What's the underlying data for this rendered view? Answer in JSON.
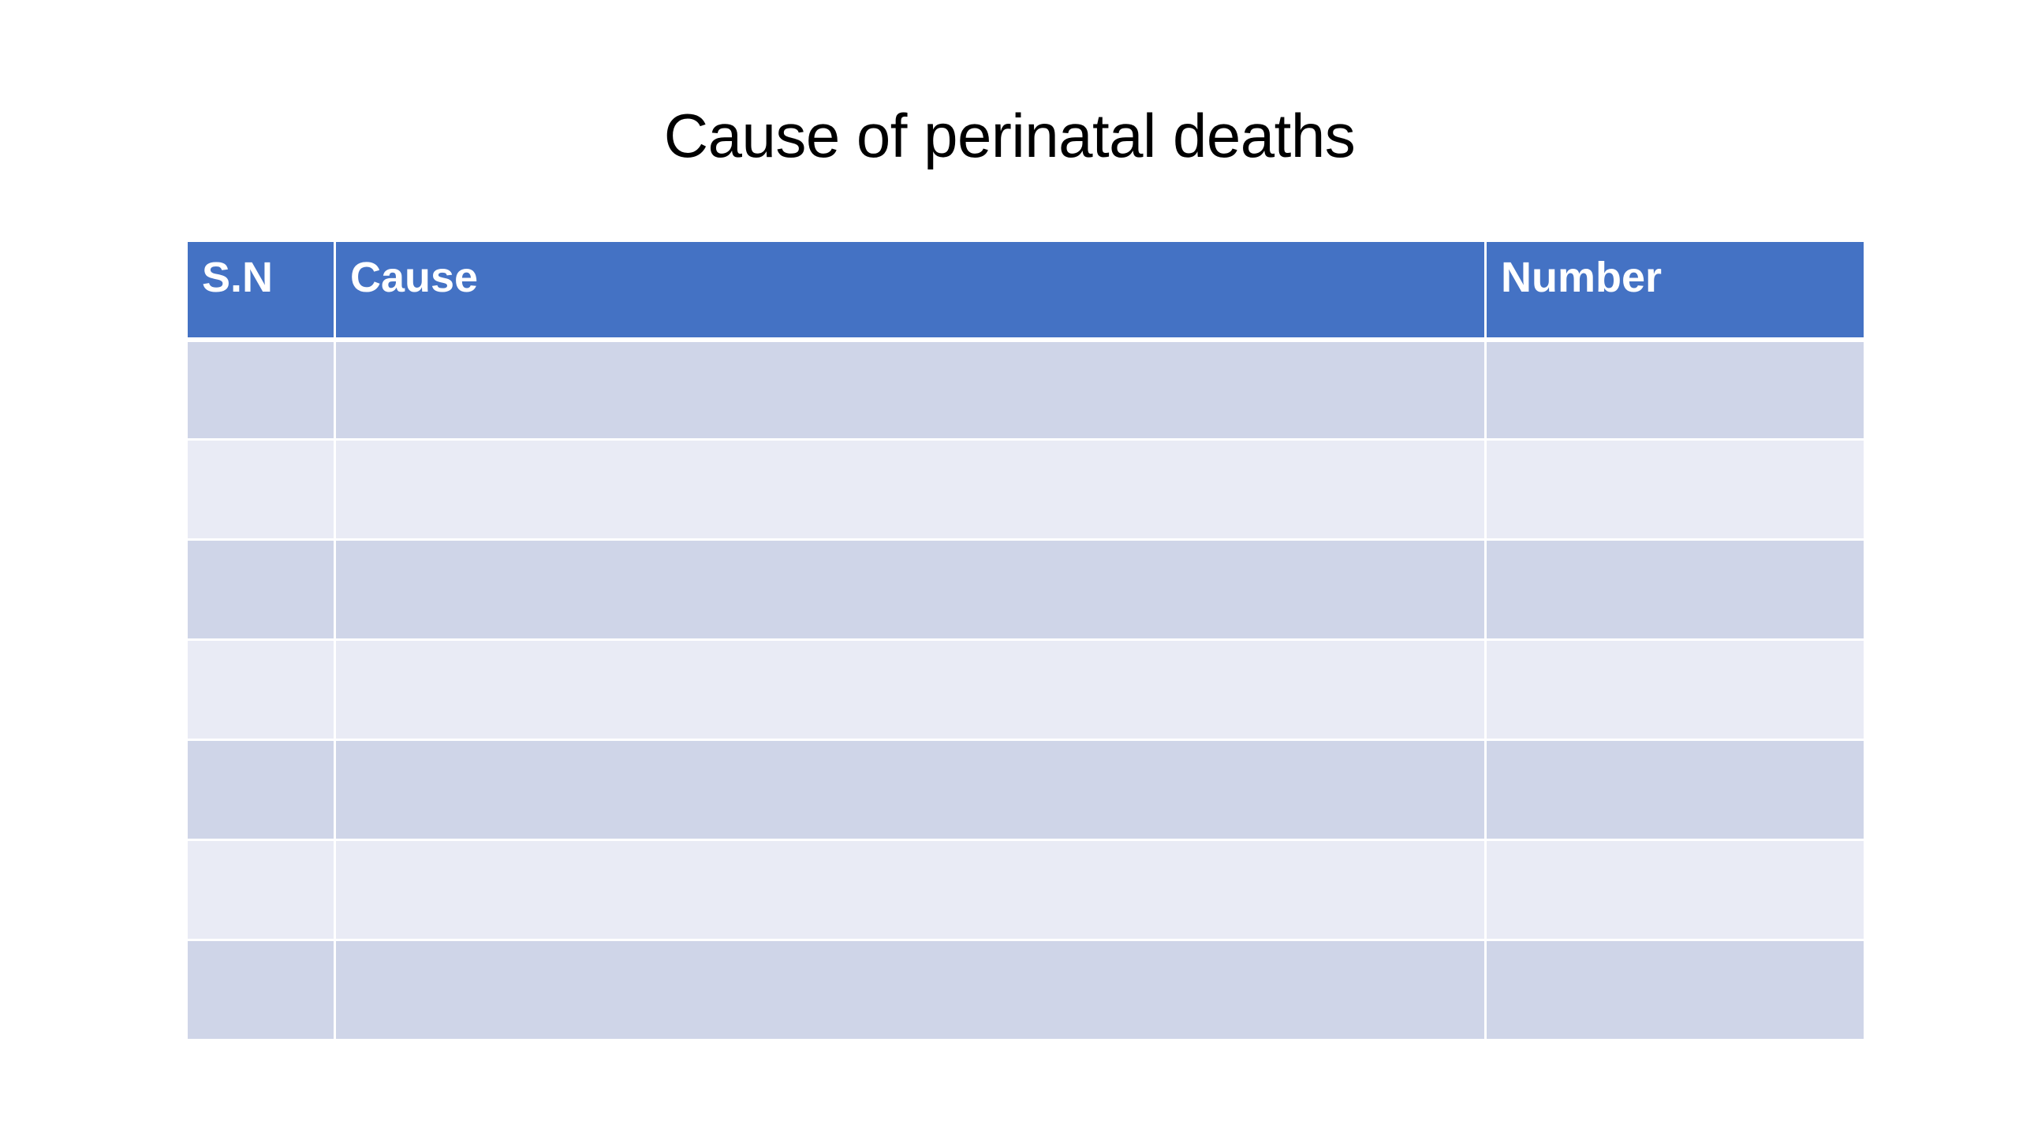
{
  "slide": {
    "title": "Cause of perinatal deaths"
  },
  "table": {
    "headers": {
      "sn": "S.N",
      "cause": "Cause",
      "number": "Number"
    },
    "rows": [
      {
        "sn": "",
        "cause": "",
        "number": ""
      },
      {
        "sn": "",
        "cause": "",
        "number": ""
      },
      {
        "sn": "",
        "cause": "",
        "number": ""
      },
      {
        "sn": "",
        "cause": "",
        "number": ""
      },
      {
        "sn": "",
        "cause": "",
        "number": ""
      },
      {
        "sn": "",
        "cause": "",
        "number": ""
      },
      {
        "sn": "",
        "cause": "",
        "number": ""
      }
    ]
  },
  "colors": {
    "header_bg": "#4472c4",
    "row_odd_bg": "#cfd5e8",
    "row_even_bg": "#e9ebf5"
  }
}
